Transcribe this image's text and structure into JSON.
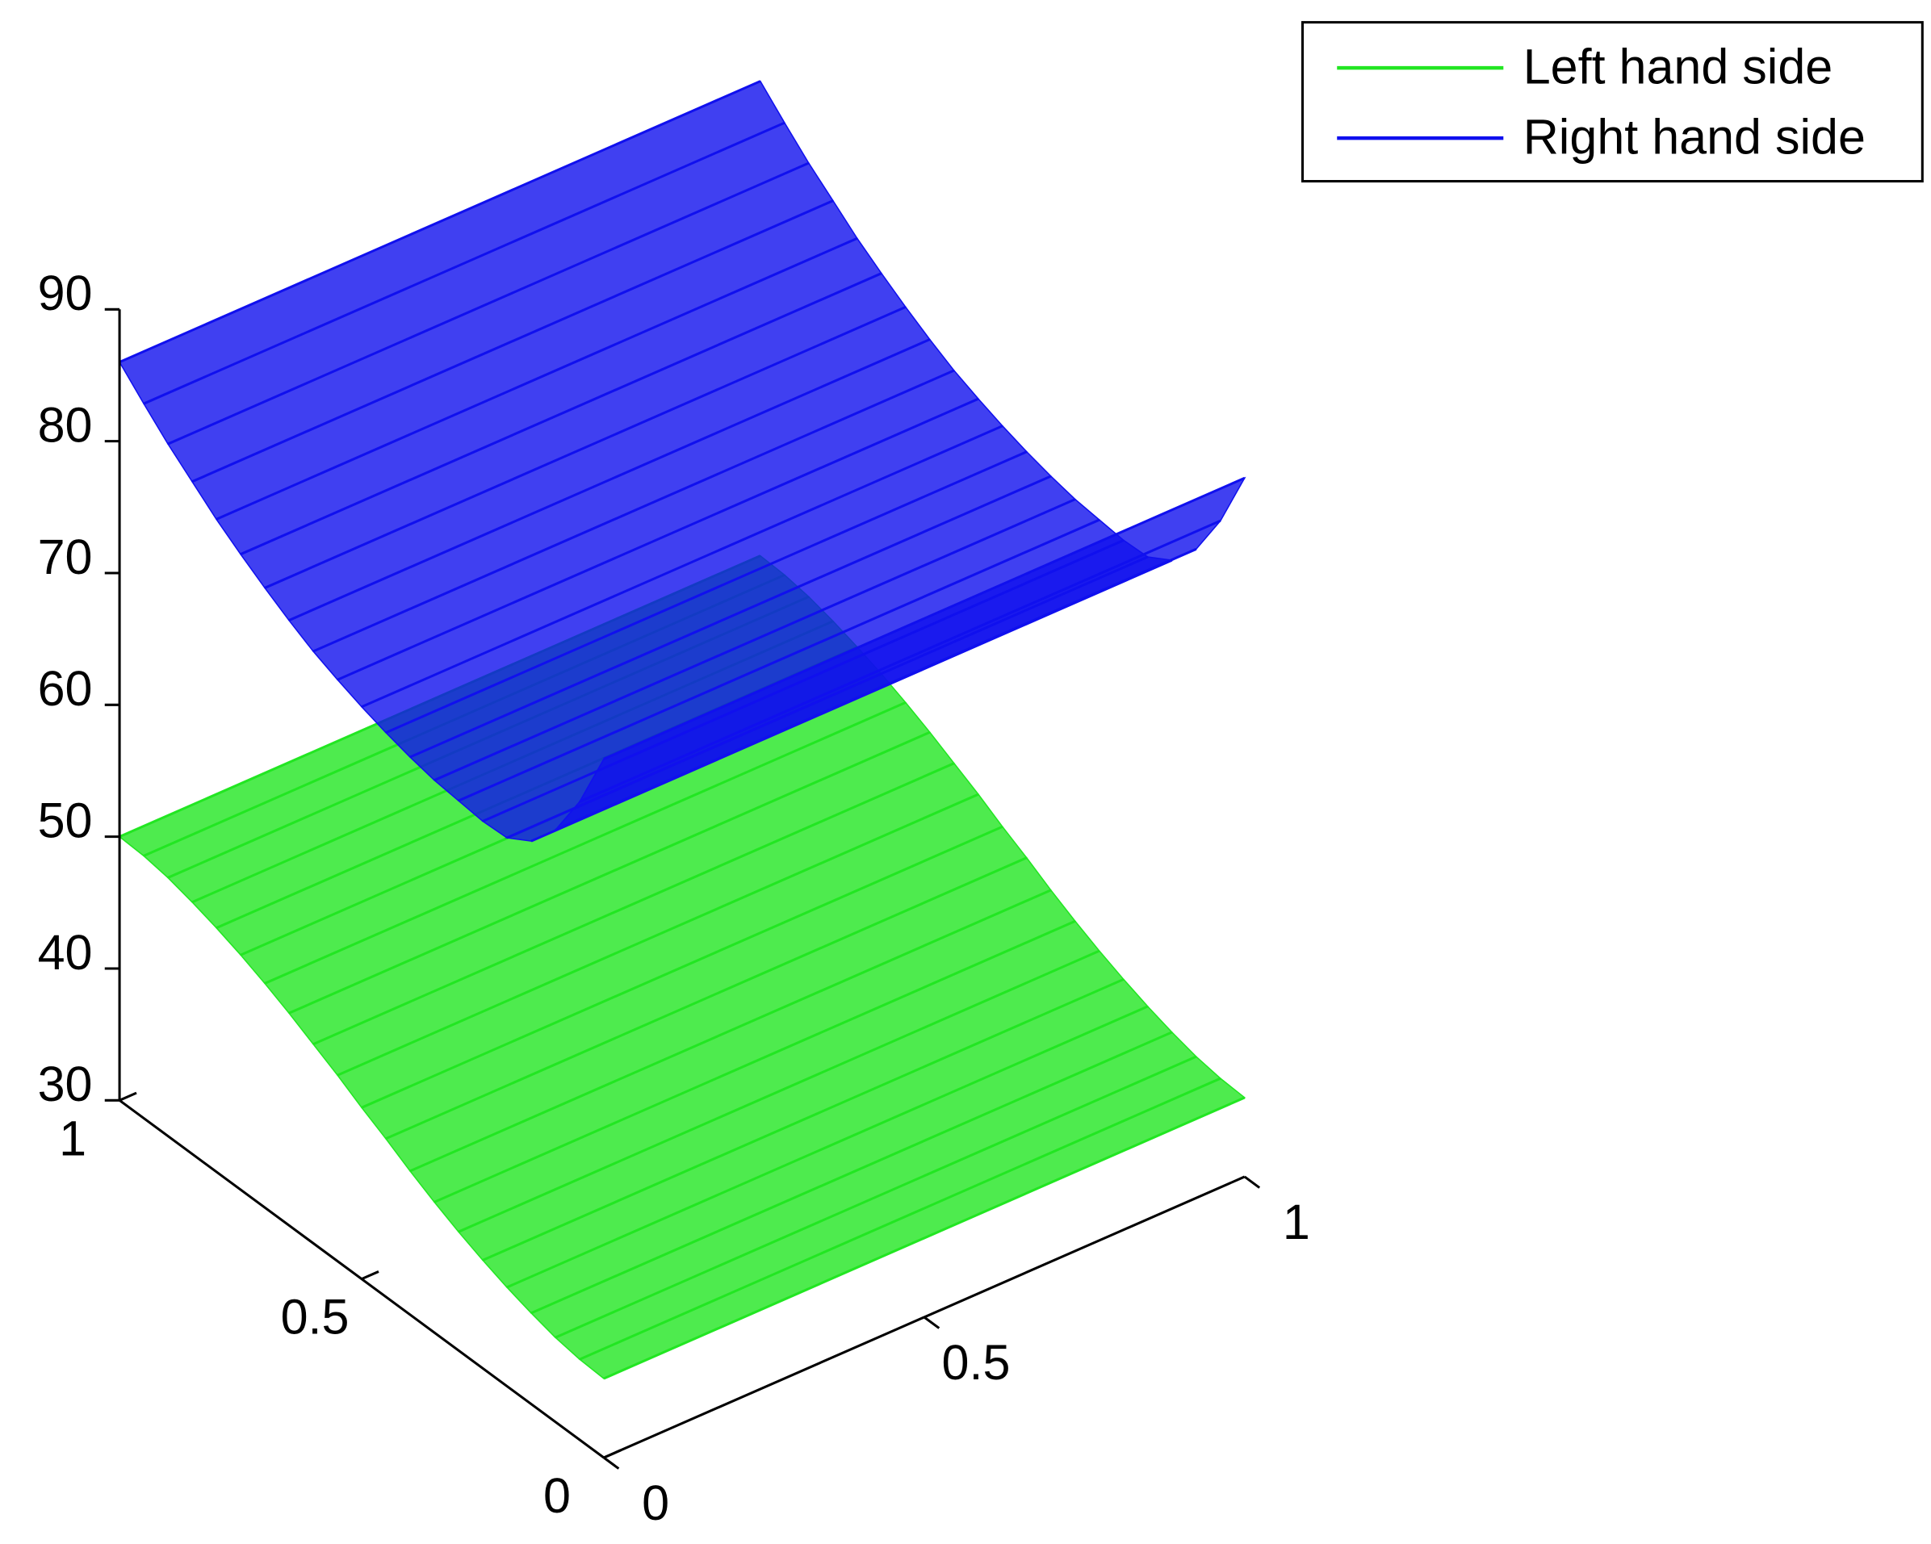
{
  "chart_data": {
    "type": "mesh3d",
    "xlim": [
      0,
      1
    ],
    "ylim": [
      0,
      1
    ],
    "zlim": [
      30,
      90
    ],
    "xticks": [
      0,
      0.5,
      1
    ],
    "yticks": [
      0,
      0.5,
      1
    ],
    "zticks": [
      30,
      40,
      50,
      60,
      70,
      80,
      90
    ],
    "y": [
      0,
      0.05,
      0.1,
      0.15,
      0.2,
      0.25,
      0.3,
      0.35,
      0.4,
      0.45,
      0.5,
      0.55,
      0.6,
      0.65,
      0.7,
      0.75,
      0.8,
      0.85,
      0.9,
      0.95,
      1
    ],
    "legend": "upper right",
    "series": [
      {
        "name": "Left hand side",
        "color": "#22e622",
        "values": [
          36,
          36.1,
          36.4,
          36.9,
          37.5,
          38.2,
          39,
          39.9,
          40.9,
          42,
          43,
          44.1,
          45.1,
          46.1,
          47,
          47.8,
          48.5,
          49.1,
          49.6,
          49.9,
          50
        ]
      },
      {
        "name": "Right hand side",
        "color": "#1010ee",
        "values": [
          83,
          78.4,
          74.9,
          72.7,
          71.6,
          71.5,
          71.7,
          71.9,
          72.3,
          72.8,
          73.4,
          74.1,
          74.9,
          75.9,
          77,
          78.2,
          79.5,
          81,
          82.5,
          84.2,
          86
        ]
      }
    ]
  }
}
